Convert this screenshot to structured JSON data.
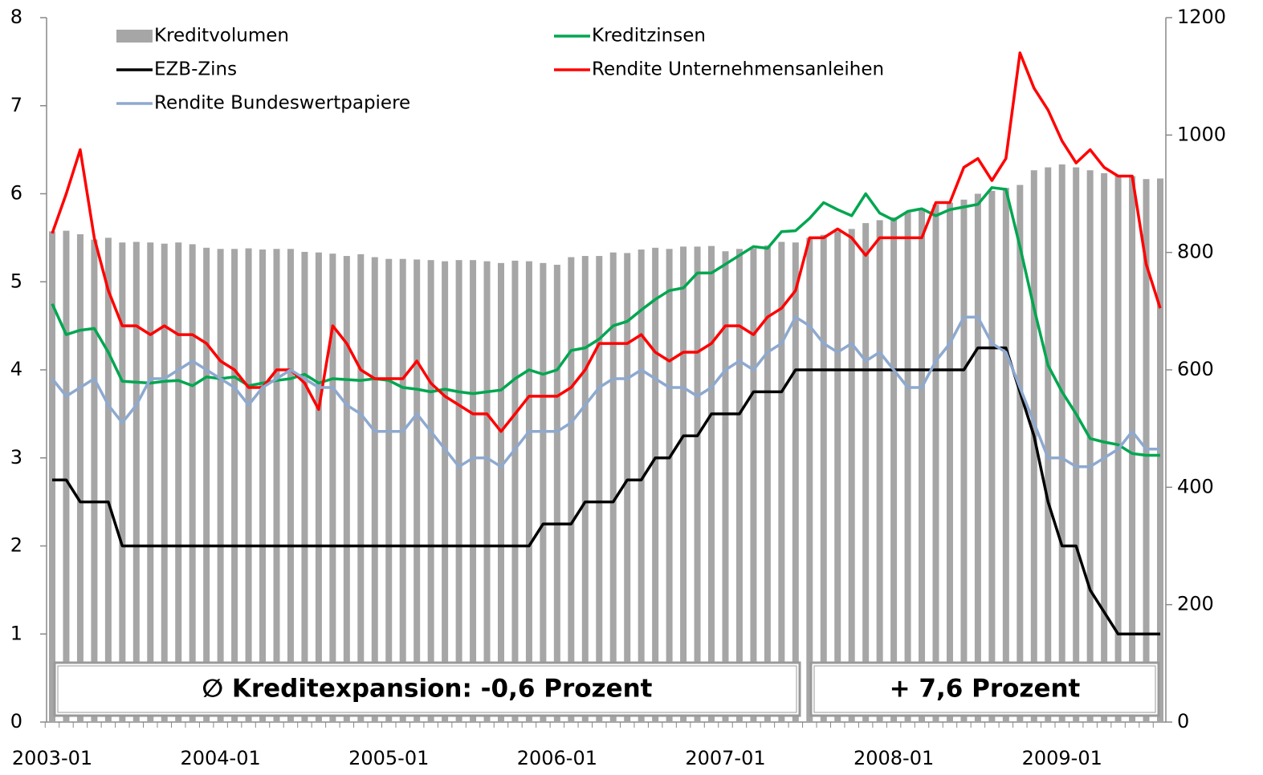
{
  "chart_data": {
    "type": "bar-line",
    "categories": [
      "2003-01",
      null,
      null,
      null,
      null,
      null,
      null,
      null,
      null,
      null,
      null,
      null,
      "2004-01",
      null,
      null,
      null,
      null,
      null,
      null,
      null,
      null,
      null,
      null,
      null,
      "2005-01",
      null,
      null,
      null,
      null,
      null,
      null,
      null,
      null,
      null,
      null,
      null,
      "2006-01",
      null,
      null,
      null,
      null,
      null,
      null,
      null,
      null,
      null,
      null,
      null,
      "2007-01",
      null,
      null,
      null,
      null,
      null,
      null,
      null,
      null,
      null,
      null,
      null,
      "2008-01",
      null,
      null,
      null,
      null,
      null,
      null,
      null,
      null,
      null,
      null,
      null,
      "2009-01",
      null,
      null,
      null,
      null,
      null,
      null,
      null
    ],
    "series": [
      {
        "name": "Kreditvolumen",
        "type": "bar",
        "axis": "y2",
        "color": "#a6a6a6",
        "values": [
          836,
          837,
          831,
          822,
          825,
          817,
          818,
          817,
          815,
          817,
          814,
          808,
          806,
          806,
          807,
          805,
          806,
          806,
          801,
          800,
          798,
          794,
          797,
          792,
          789,
          789,
          788,
          787,
          785,
          787,
          787,
          785,
          782,
          786,
          785,
          782,
          779,
          792,
          794,
          794,
          800,
          799,
          805,
          808,
          806,
          810,
          810,
          811,
          802,
          806,
          807,
          812,
          818,
          817,
          825,
          830,
          836,
          840,
          850,
          855,
          860,
          868,
          875,
          882,
          885,
          890,
          900,
          905,
          910,
          915,
          940,
          945,
          950,
          945,
          940,
          935,
          932,
          930,
          925,
          926
        ]
      },
      {
        "name": "Kreditzinsen",
        "type": "line",
        "color": "#00a650",
        "values": [
          4.75,
          4.4,
          4.45,
          4.47,
          4.2,
          3.87,
          3.86,
          3.85,
          3.87,
          3.88,
          3.82,
          3.92,
          3.9,
          3.92,
          3.82,
          3.85,
          3.88,
          3.9,
          3.95,
          3.85,
          3.9,
          3.89,
          3.88,
          3.9,
          3.88,
          3.8,
          3.78,
          3.75,
          3.78,
          3.75,
          3.73,
          3.75,
          3.77,
          3.9,
          4.0,
          3.95,
          4.0,
          4.22,
          4.25,
          4.35,
          4.5,
          4.55,
          4.68,
          4.8,
          4.9,
          4.93,
          5.1,
          5.1,
          5.2,
          5.3,
          5.4,
          5.38,
          5.57,
          5.58,
          5.72,
          5.9,
          5.82,
          5.75,
          6.0,
          5.78,
          5.7,
          5.8,
          5.83,
          5.75,
          5.82,
          5.85,
          5.88,
          6.07,
          6.05,
          5.4,
          4.7,
          4.05,
          3.75,
          3.5,
          3.22,
          3.18,
          3.15,
          3.05,
          3.03,
          3.03
        ]
      },
      {
        "name": "EZB-Zins",
        "type": "line",
        "color": "#000000",
        "values": [
          2.75,
          2.75,
          2.5,
          2.5,
          2.5,
          2,
          2,
          2,
          2,
          2,
          2,
          2,
          2,
          2,
          2,
          2,
          2,
          2,
          2,
          2,
          2,
          2,
          2,
          2,
          2,
          2,
          2,
          2,
          2,
          2,
          2,
          2,
          2,
          2,
          2,
          2.25,
          2.25,
          2.25,
          2.5,
          2.5,
          2.5,
          2.75,
          2.75,
          3,
          3,
          3.25,
          3.25,
          3.5,
          3.5,
          3.5,
          3.75,
          3.75,
          3.75,
          4,
          4,
          4,
          4,
          4,
          4,
          4,
          4,
          4,
          4,
          4,
          4,
          4,
          4.25,
          4.25,
          4.25,
          3.75,
          3.25,
          2.5,
          2,
          2,
          1.5,
          1.25,
          1,
          1,
          1,
          1
        ]
      },
      {
        "name": "Rendite Unternehmensanleihen",
        "type": "line",
        "color": "#ff0000",
        "values": [
          5.55,
          6,
          6.5,
          5.5,
          4.9,
          4.5,
          4.5,
          4.4,
          4.5,
          4.4,
          4.4,
          4.3,
          4.1,
          4,
          3.8,
          3.8,
          4,
          4,
          3.85,
          3.55,
          4.5,
          4.3,
          4,
          3.9,
          3.9,
          3.9,
          4.1,
          3.85,
          3.7,
          3.6,
          3.5,
          3.5,
          3.3,
          3.5,
          3.7,
          3.7,
          3.7,
          3.8,
          4,
          4.3,
          4.3,
          4.3,
          4.4,
          4.2,
          4.1,
          4.2,
          4.2,
          4.3,
          4.5,
          4.5,
          4.4,
          4.6,
          4.7,
          4.9,
          5.5,
          5.5,
          5.6,
          5.5,
          5.3,
          5.5,
          5.5,
          5.5,
          5.5,
          5.9,
          5.9,
          6.3,
          6.4,
          6.15,
          6.4,
          7.6,
          7.2,
          6.95,
          6.6,
          6.35,
          6.5,
          6.3,
          6.2,
          6.2,
          5.2,
          4.7
        ]
      },
      {
        "name": "Rendite Bundeswertpapiere",
        "type": "line",
        "color": "#8ea9cf",
        "values": [
          3.9,
          3.7,
          3.8,
          3.9,
          3.6,
          3.4,
          3.6,
          3.9,
          3.9,
          4,
          4.1,
          4,
          3.9,
          3.8,
          3.6,
          3.8,
          3.9,
          4,
          3.9,
          3.8,
          3.8,
          3.6,
          3.5,
          3.3,
          3.3,
          3.3,
          3.5,
          3.3,
          3.1,
          2.9,
          3,
          3,
          2.9,
          3.1,
          3.3,
          3.3,
          3.3,
          3.4,
          3.6,
          3.8,
          3.9,
          3.9,
          4,
          3.9,
          3.8,
          3.8,
          3.7,
          3.8,
          4,
          4.1,
          4,
          4.2,
          4.3,
          4.6,
          4.5,
          4.3,
          4.2,
          4.3,
          4.1,
          4.2,
          4,
          3.8,
          3.8,
          4.1,
          4.3,
          4.6,
          4.6,
          4.3,
          4.2,
          3.8,
          3.4,
          3,
          3,
          2.9,
          2.9,
          3,
          3.1,
          3.3,
          3.1,
          3.1
        ]
      }
    ],
    "ylim": [
      0,
      8
    ],
    "yticks": [
      0,
      1,
      2,
      3,
      4,
      5,
      6,
      7,
      8
    ],
    "y2lim": [
      0,
      1200
    ],
    "y2ticks": [
      0,
      200,
      400,
      600,
      800,
      1000,
      1200
    ],
    "annotations": [
      "∅ Kreditexpansion: -0,6 Prozent",
      "+ 7,6 Prozent"
    ]
  }
}
